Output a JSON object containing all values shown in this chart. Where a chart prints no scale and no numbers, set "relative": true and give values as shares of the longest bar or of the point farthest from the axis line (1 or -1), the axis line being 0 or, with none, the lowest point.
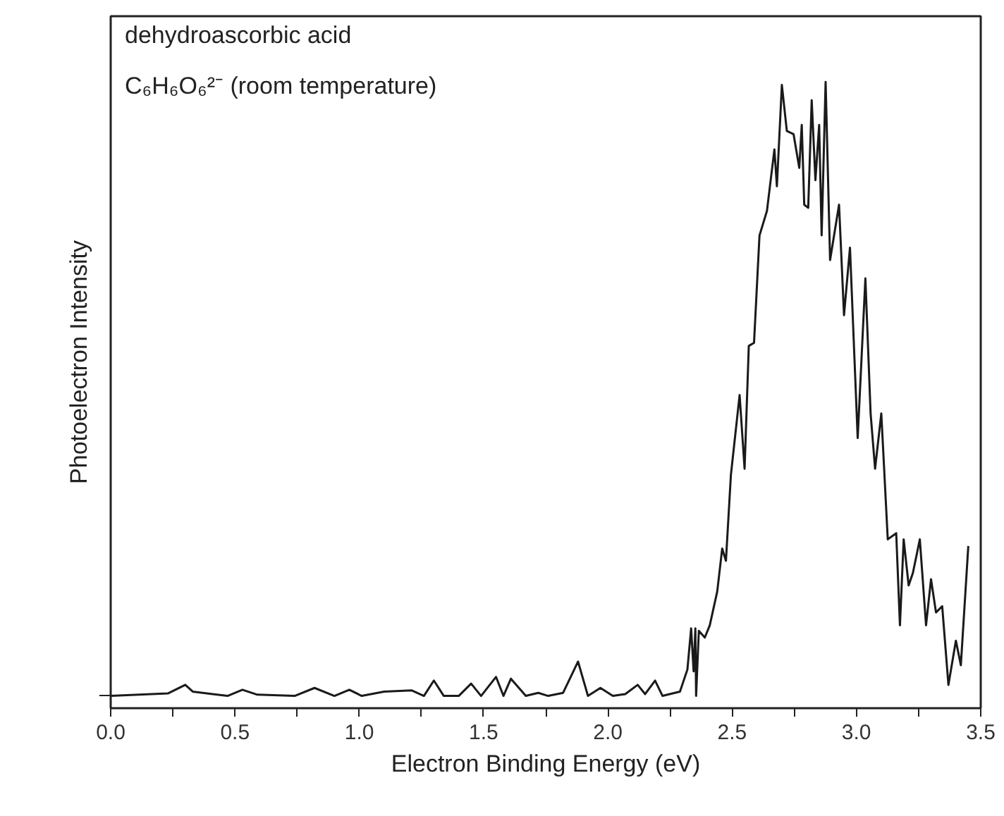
{
  "chart_data": {
    "type": "line",
    "relative": true,
    "xlabel": "Electron Binding Energy (eV)",
    "ylabel": "Photoelectron Intensity",
    "annotations": [
      "dehydroascorbic acid",
      "C₆H₆O₆²⁻ (room temperature)"
    ],
    "xlim": [
      0,
      3.5
    ],
    "xticks": [
      {
        "value": 0,
        "label": "0.0"
      },
      {
        "value": 0.25,
        "label": null
      },
      {
        "value": 0.5,
        "label": "0.5"
      },
      {
        "value": 0.75,
        "label": null
      },
      {
        "value": 1,
        "label": "1.0"
      },
      {
        "value": 1.25,
        "label": null
      },
      {
        "value": 1.5,
        "label": "1.5"
      },
      {
        "value": 1.75,
        "label": null
      },
      {
        "value": 2,
        "label": "2.0"
      },
      {
        "value": 2.25,
        "label": null
      },
      {
        "value": 2.5,
        "label": "2.5"
      },
      {
        "value": 2.75,
        "label": null
      },
      {
        "value": 3,
        "label": "3.0"
      },
      {
        "value": 3.25,
        "label": null
      },
      {
        "value": 3.5,
        "label": "3.5"
      }
    ],
    "tick_labels": "x",
    "grid": false,
    "marker": "none",
    "line_style": "solid",
    "series": [
      {
        "color": "#1a1a1a",
        "x": [
          0.0,
          0.23,
          0.3,
          0.33,
          0.41,
          0.47,
          0.53,
          0.59,
          0.74,
          0.82,
          0.9,
          0.96,
          1.01,
          1.1,
          1.21,
          1.26,
          1.3,
          1.34,
          1.4,
          1.45,
          1.49,
          1.55,
          1.58,
          1.61,
          1.67,
          1.72,
          1.76,
          1.82,
          1.88,
          1.92,
          1.97,
          2.02,
          2.07,
          2.12,
          2.15,
          2.19,
          2.22,
          2.29,
          2.32,
          2.335,
          2.345,
          2.352,
          2.355,
          2.366,
          2.39,
          2.41,
          2.44,
          2.46,
          2.475,
          2.495,
          2.53,
          2.55,
          2.567,
          2.588,
          2.61,
          2.64,
          2.67,
          2.68,
          2.7,
          2.72,
          2.747,
          2.77,
          2.78,
          2.79,
          2.806,
          2.82,
          2.835,
          2.85,
          2.86,
          2.876,
          2.894,
          2.93,
          2.95,
          2.974,
          3.005,
          3.036,
          3.057,
          3.075,
          3.1,
          3.126,
          3.16,
          3.175,
          3.19,
          3.21,
          3.227,
          3.255,
          3.28,
          3.3,
          3.32,
          3.345,
          3.37,
          3.4,
          3.42,
          3.45
        ],
        "values": [
          0.0,
          0.004,
          0.018,
          0.007,
          0.003,
          0.0,
          0.01,
          0.002,
          0.0,
          0.013,
          0.0,
          0.01,
          0.0,
          0.007,
          0.009,
          0.0,
          0.025,
          0.0,
          0.0,
          0.02,
          0.0,
          0.031,
          0.0,
          0.028,
          0.0,
          0.005,
          0.0,
          0.005,
          0.056,
          0.0,
          0.013,
          0.0,
          0.003,
          0.018,
          0.003,
          0.025,
          0.0,
          0.007,
          0.043,
          0.11,
          0.04,
          0.11,
          0.0,
          0.106,
          0.095,
          0.115,
          0.17,
          0.24,
          0.22,
          0.36,
          0.49,
          0.37,
          0.57,
          0.575,
          0.75,
          0.79,
          0.89,
          0.83,
          0.995,
          0.92,
          0.915,
          0.86,
          0.93,
          0.8,
          0.795,
          0.97,
          0.84,
          0.93,
          0.75,
          1.0,
          0.71,
          0.8,
          0.62,
          0.73,
          0.42,
          0.68,
          0.46,
          0.37,
          0.46,
          0.255,
          0.265,
          0.115,
          0.255,
          0.18,
          0.2,
          0.255,
          0.115,
          0.19,
          0.136,
          0.146,
          0.018,
          0.09,
          0.05,
          0.244
        ]
      }
    ]
  }
}
